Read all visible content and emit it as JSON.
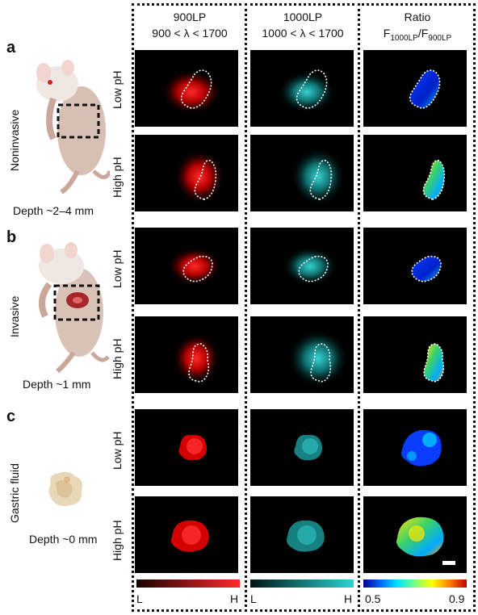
{
  "columns": [
    {
      "title": "900LP",
      "subtitle": "900 < λ < 1700"
    },
    {
      "title": "1000LP",
      "subtitle": "1000 < λ < 1700"
    },
    {
      "title": "Ratio",
      "subtitle_main": "F",
      "sub1": "1000LP",
      "slash": "/F",
      "sub2": "900LP"
    }
  ],
  "panels": [
    {
      "letter": "a",
      "method": "Noninvasive",
      "depth": "Depth ~2–4 mm"
    },
    {
      "letter": "b",
      "method": "Invasive",
      "depth": "Depth ~1 mm"
    },
    {
      "letter": "c",
      "method": "Gastric fluid",
      "depth": "Depth ~0 mm"
    }
  ],
  "rows": [
    "Low pH",
    "High pH",
    "Low pH",
    "High pH",
    "Low pH",
    "High pH"
  ],
  "colorbars": [
    {
      "low": "L",
      "high": "H",
      "colors": [
        "#1a0000",
        "#ff2a2a"
      ]
    },
    {
      "low": "L",
      "high": "H",
      "colors": [
        "#001414",
        "#2ad4d4"
      ]
    },
    {
      "low": "0.5",
      "high": "0.9",
      "colors": [
        "#00008b",
        "#0066ff",
        "#00e5ff",
        "#7cff7c",
        "#ffff00",
        "#ff7f00",
        "#c00000"
      ]
    }
  ]
}
